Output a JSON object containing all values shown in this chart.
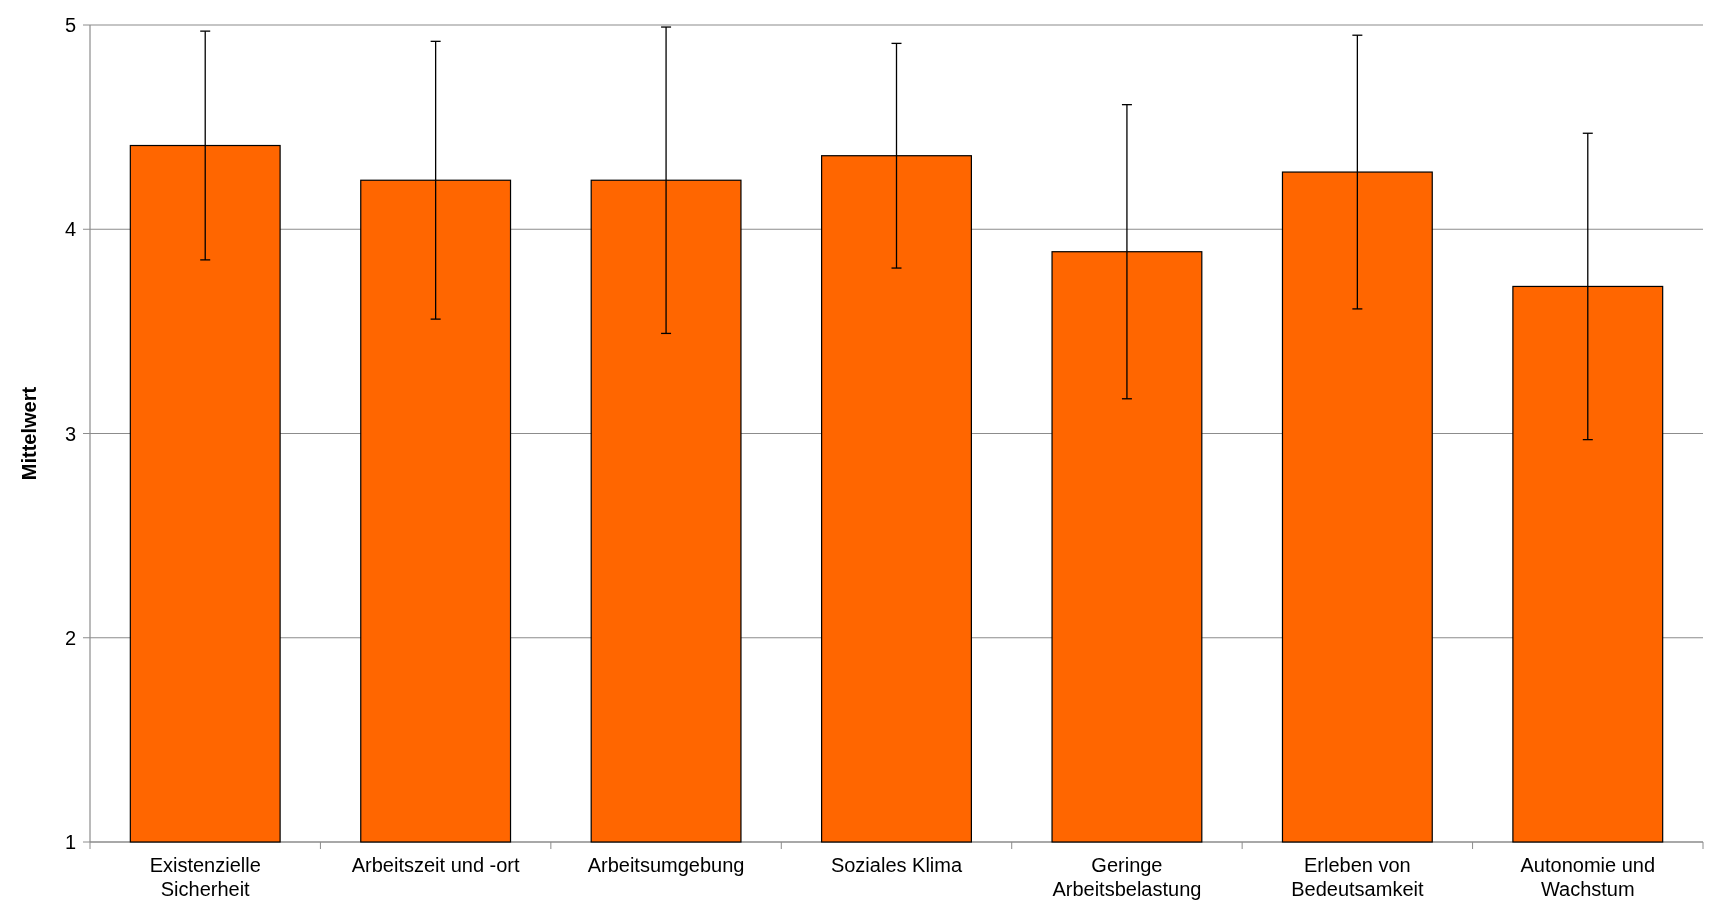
{
  "chart_data": {
    "type": "bar",
    "ylabel": "Mittelwert",
    "categories": [
      "Existenzielle Sicherheit",
      "Arbeitszeit und -ort",
      "Arbeitsumgebung",
      "Soziales Klima",
      "Geringe Arbeitsbelastung",
      "Erleben von Bedeutsamkeit",
      "Autonomie und Wachstum"
    ],
    "values": [
      4.41,
      4.24,
      4.24,
      4.36,
      3.89,
      4.28,
      3.72
    ],
    "errors": [
      0.56,
      0.68,
      0.75,
      0.55,
      0.72,
      0.67,
      0.75
    ],
    "color": "#ff6600",
    "ylim": [
      1,
      5
    ],
    "yticks": [
      1,
      2,
      3,
      4,
      5
    ],
    "grid": "y"
  }
}
